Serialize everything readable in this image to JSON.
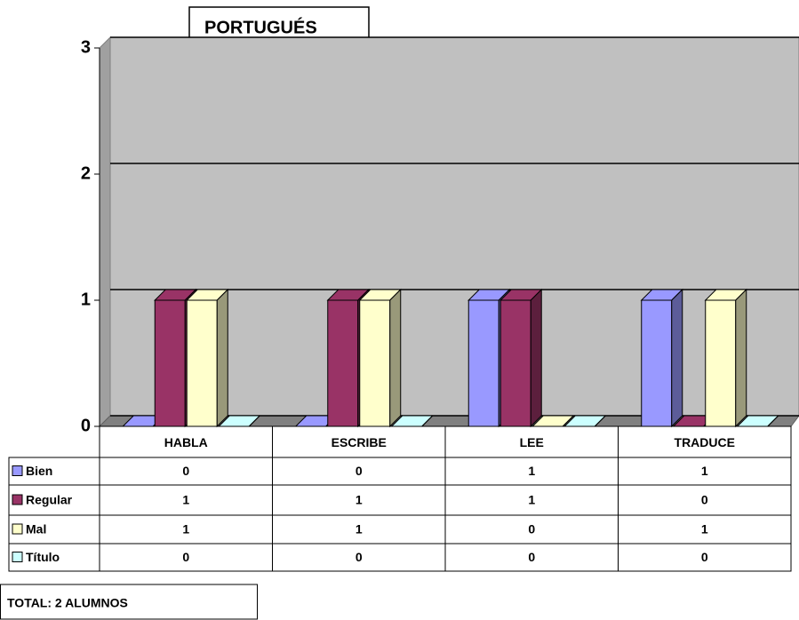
{
  "chart_data": {
    "type": "bar3d",
    "title": "PORTUGUÉS",
    "footer": "TOTAL: 2 ALUMNOS",
    "categories": [
      "HABLA",
      "ESCRIBE",
      "LEE",
      "TRADUCE"
    ],
    "series": [
      {
        "name": "Bien",
        "color": "#9999ff",
        "values": [
          0,
          0,
          1,
          1
        ]
      },
      {
        "name": "Regular",
        "color": "#993366",
        "values": [
          1,
          1,
          1,
          0
        ]
      },
      {
        "name": "Mal",
        "color": "#ffffcc",
        "values": [
          1,
          1,
          0,
          1
        ]
      },
      {
        "name": "Título",
        "color": "#ccffff",
        "values": [
          0,
          0,
          0,
          0
        ]
      }
    ],
    "ylim": [
      0,
      3
    ],
    "yticks": [
      0,
      1,
      2,
      3
    ],
    "grid": true
  }
}
